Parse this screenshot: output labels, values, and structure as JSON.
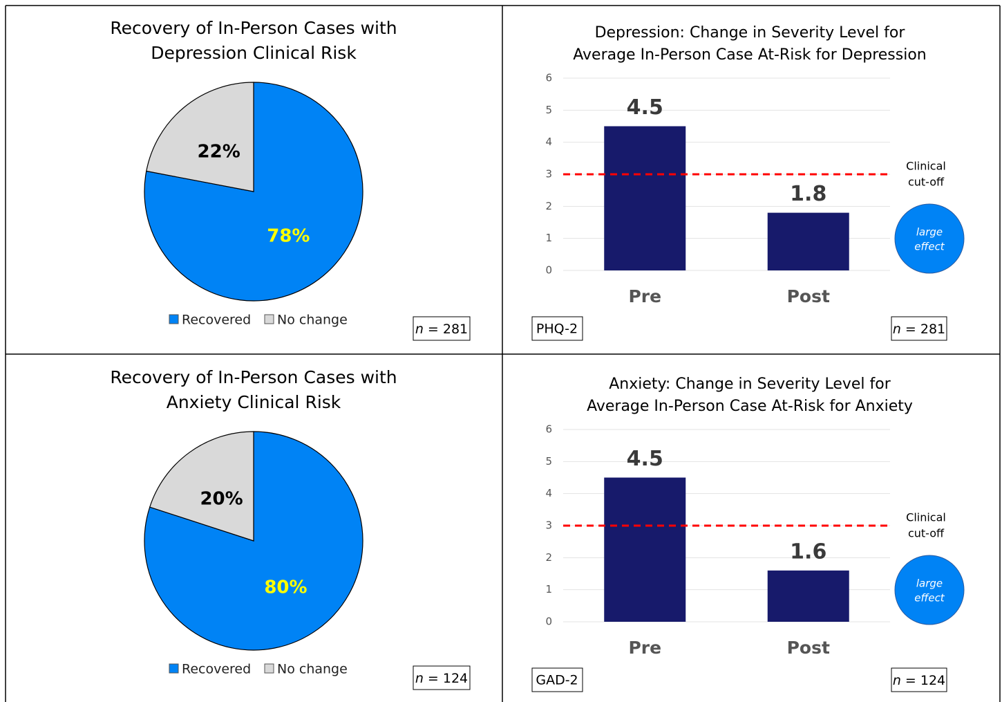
{
  "chart_data": [
    {
      "type": "pie",
      "title": [
        "Recovery of In-Person Cases with",
        "Depression Clinical Risk"
      ],
      "categories": [
        "Recovered",
        "No change"
      ],
      "values": [
        78,
        22
      ],
      "value_labels": [
        "78%",
        "22%"
      ],
      "colors": [
        "#0083f5",
        "#d9d9d9"
      ],
      "label_colors": [
        "#ffff00",
        "#000000"
      ],
      "legend": "bottom",
      "sample_note": [
        "n",
        "= 281"
      ]
    },
    {
      "type": "bar",
      "title": [
        "Depression: Change in Severity Level for",
        "Average In-Person Case At-Risk for Depression"
      ],
      "categories": [
        "Pre",
        "Post"
      ],
      "values": [
        4.5,
        1.8
      ],
      "color": "#171a6b",
      "ylim": [
        0,
        6
      ],
      "yticks": [
        0,
        1,
        2,
        3,
        4,
        5,
        6
      ],
      "grid": true,
      "reference_line": {
        "value": 3,
        "label": [
          "Clinical",
          "cut-off"
        ],
        "color": "#ff0000"
      },
      "effect_label": [
        "large",
        "effect"
      ],
      "measure": "PHQ-2",
      "sample_note": [
        "n",
        "= 281"
      ]
    },
    {
      "type": "pie",
      "title": [
        "Recovery of In-Person Cases with",
        "Anxiety Clinical Risk"
      ],
      "categories": [
        "Recovered",
        "No change"
      ],
      "values": [
        80,
        20
      ],
      "value_labels": [
        "80%",
        "20%"
      ],
      "colors": [
        "#0083f5",
        "#d9d9d9"
      ],
      "label_colors": [
        "#ffff00",
        "#000000"
      ],
      "legend": "bottom",
      "sample_note": [
        "n",
        "= 124"
      ]
    },
    {
      "type": "bar",
      "title": [
        "Anxiety: Change in Severity Level for",
        "Average In-Person Case At-Risk for Anxiety"
      ],
      "categories": [
        "Pre",
        "Post"
      ],
      "values": [
        4.5,
        1.6
      ],
      "color": "#171a6b",
      "ylim": [
        0,
        6
      ],
      "yticks": [
        0,
        1,
        2,
        3,
        4,
        5,
        6
      ],
      "grid": true,
      "reference_line": {
        "value": 3,
        "label": [
          "Clinical",
          "cut-off"
        ],
        "color": "#ff0000"
      },
      "effect_label": [
        "large",
        "effect"
      ],
      "measure": "GAD-2",
      "sample_note": [
        "n",
        "= 124"
      ]
    }
  ]
}
